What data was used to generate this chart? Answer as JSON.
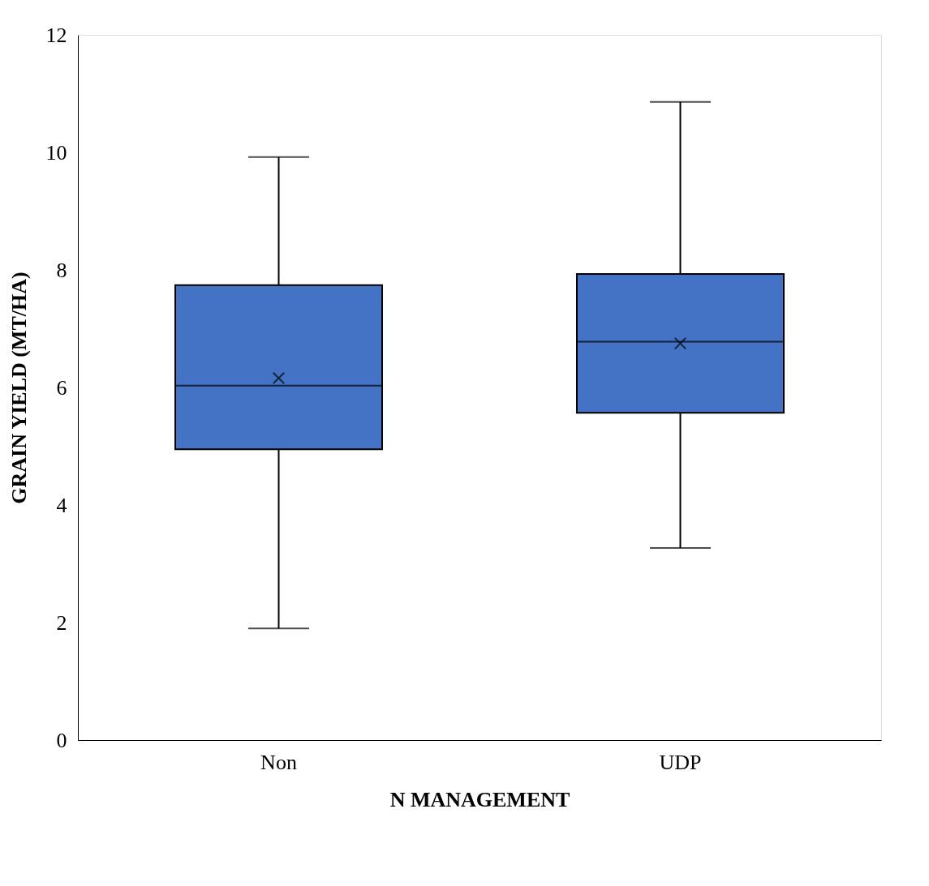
{
  "chart_data": {
    "type": "box",
    "xlabel": "N MANAGEMENT",
    "ylabel": "GRAIN YIELD (MT/HA)",
    "categories": [
      "Non",
      "UDP"
    ],
    "boxes": [
      {
        "low": 1.9,
        "q1": 4.95,
        "median": 6.03,
        "q3": 7.74,
        "high": 9.92,
        "mean": 6.16
      },
      {
        "low": 3.27,
        "q1": 5.57,
        "median": 6.78,
        "q3": 7.93,
        "high": 10.86,
        "mean": 6.75
      }
    ],
    "color": "#4472c4",
    "ylim": [
      0,
      12
    ],
    "yticks": [
      0,
      2,
      4,
      6,
      8,
      10,
      12
    ],
    "grid": false
  }
}
